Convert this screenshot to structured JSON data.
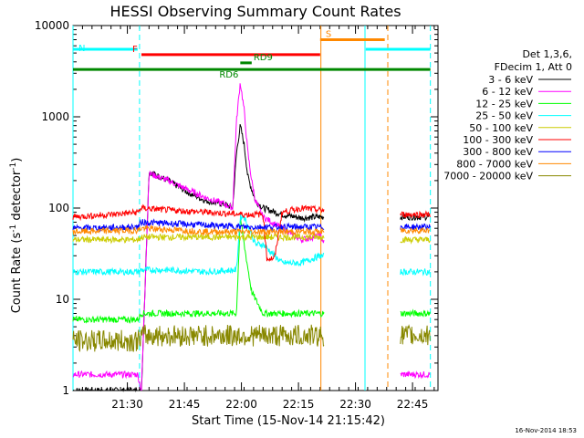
{
  "chart_data": {
    "type": "line",
    "title": "HESSI Observing Summary Count Rates",
    "xlabel": "Start Time (15-Nov-14 21:15:42)",
    "ylabel_main": "Count Rate (s",
    "ylabel_sup1": "-1",
    "ylabel_mid": " detector",
    "ylabel_sup2": "-1",
    "ylabel_end": ")",
    "yscale": "log",
    "ylim": [
      1,
      10000
    ],
    "xlim_minutes": [
      0,
      96
    ],
    "x_tick_labels": [
      "21:30",
      "21:45",
      "22:00",
      "22:15",
      "22:30",
      "22:45"
    ],
    "x_tick_minutes": [
      14.3,
      29.3,
      44.3,
      59.3,
      74.3,
      89.3
    ],
    "y_tick_labels": [
      "1",
      "10",
      "100",
      "1000",
      "10000"
    ],
    "y_tick_values": [
      1,
      10,
      100,
      1000,
      10000
    ],
    "legend_header": [
      "Det 1,3,6,",
      "FDecim 1, Att 0"
    ],
    "legend_position": "right",
    "timestamp": "16-Nov-2014 18:53",
    "series": [
      {
        "name": "3 - 6 keV",
        "color": "#000000",
        "x": [
          0,
          17,
          18,
          20,
          25,
          30,
          35,
          40,
          42,
          43,
          44,
          45,
          46,
          47,
          48,
          50,
          55,
          60,
          65
        ],
        "y": [
          1,
          1,
          1,
          250,
          200,
          150,
          120,
          110,
          100,
          400,
          800,
          500,
          220,
          160,
          120,
          100,
          85,
          78,
          80
        ]
      },
      {
        "name": "6 - 12 keV",
        "color": "#ff00ff",
        "x": [
          0,
          17,
          18,
          20,
          25,
          30,
          35,
          40,
          42,
          43,
          44,
          45,
          46,
          47,
          48,
          50,
          55,
          60,
          65,
          85,
          86,
          94
        ],
        "y": [
          1.5,
          1.5,
          1,
          240,
          200,
          160,
          130,
          110,
          100,
          900,
          2400,
          1200,
          400,
          200,
          120,
          80,
          60,
          45,
          50,
          1.5,
          1.5,
          1.5
        ]
      },
      {
        "name": "12 - 25 keV",
        "color": "#00ff00",
        "x": [
          0,
          17,
          18,
          25,
          35,
          43,
          44,
          45,
          47,
          50,
          55,
          60,
          65,
          85,
          86,
          94
        ],
        "y": [
          6,
          6,
          7,
          7,
          7,
          7,
          80,
          40,
          12,
          7,
          7,
          7,
          7,
          7,
          7,
          7
        ]
      },
      {
        "name": "25 - 50 keV",
        "color": "#00ffff",
        "x": [
          0,
          17,
          18,
          25,
          35,
          43,
          44,
          45,
          48,
          50,
          55,
          60,
          65,
          85,
          86,
          94
        ],
        "y": [
          20,
          20,
          21,
          21,
          20,
          21,
          80,
          80,
          40,
          40,
          25,
          25,
          30,
          20,
          20,
          20
        ]
      },
      {
        "name": "50 - 100 keV",
        "color": "#cccc00",
        "x": [
          0,
          17,
          18,
          25,
          35,
          45,
          55,
          65,
          85,
          86,
          94
        ],
        "y": [
          45,
          45,
          48,
          48,
          48,
          48,
          48,
          48,
          45,
          45,
          45
        ]
      },
      {
        "name": "100 - 300 keV",
        "color": "#ff0000",
        "x": [
          0,
          10,
          17,
          18,
          25,
          35,
          45,
          50,
          51,
          53,
          55,
          60,
          65,
          85,
          86,
          94
        ],
        "y": [
          80,
          85,
          90,
          100,
          95,
          90,
          85,
          85,
          28,
          28,
          90,
          100,
          95,
          85,
          85,
          85
        ]
      },
      {
        "name": "300 - 800 keV",
        "color": "#0000ff",
        "x": [
          0,
          17,
          18,
          25,
          35,
          45,
          55,
          65,
          85,
          86,
          94
        ],
        "y": [
          60,
          62,
          70,
          68,
          65,
          62,
          62,
          62,
          62,
          62,
          62
        ]
      },
      {
        "name": "800 - 7000 keV",
        "color": "#ff8800",
        "x": [
          0,
          17,
          18,
          25,
          35,
          45,
          55,
          65,
          85,
          86,
          94
        ],
        "y": [
          55,
          57,
          60,
          58,
          55,
          55,
          55,
          55,
          57,
          57,
          57
        ]
      },
      {
        "name": "7000 - 20000 keV",
        "color": "#888800",
        "x": [
          0,
          17,
          18,
          25,
          35,
          45,
          55,
          65,
          85,
          86,
          94
        ],
        "y": [
          3.5,
          3.5,
          4,
          4,
          4,
          4,
          4,
          4,
          4,
          4,
          4
        ]
      }
    ],
    "gaps_minutes": [
      [
        66,
        86
      ]
    ],
    "flags": [
      {
        "name": "N",
        "color": "#00ffff",
        "y": 5500,
        "segments": [
          [
            0,
            17
          ],
          [
            77,
            94
          ]
        ]
      },
      {
        "name": "S",
        "color": "#ff8800",
        "y": 7000,
        "segments": [
          [
            65,
            82
          ]
        ]
      },
      {
        "name": "F",
        "color": "#ff0000",
        "y": 4800,
        "segments": [
          [
            18,
            65
          ]
        ]
      },
      {
        "name": "RD9",
        "color": "#008800",
        "y": 3900,
        "segments": [
          [
            44,
            47
          ]
        ]
      },
      {
        "name": "RD6",
        "color": "#008800",
        "y": 3300,
        "segments": [
          [
            0,
            94
          ]
        ]
      }
    ],
    "vertical_markers": [
      {
        "minute": 0,
        "color": "#00ffff",
        "style": "solid"
      },
      {
        "minute": 17.5,
        "color": "#00ffff",
        "style": "dashed"
      },
      {
        "minute": 65.2,
        "color": "#ff8800",
        "style": "solid"
      },
      {
        "minute": 76.8,
        "color": "#00ffff",
        "style": "solid"
      },
      {
        "minute": 82.8,
        "color": "#ff8800",
        "style": "dashed"
      },
      {
        "minute": 94,
        "color": "#00ffff",
        "style": "dashed"
      }
    ]
  }
}
